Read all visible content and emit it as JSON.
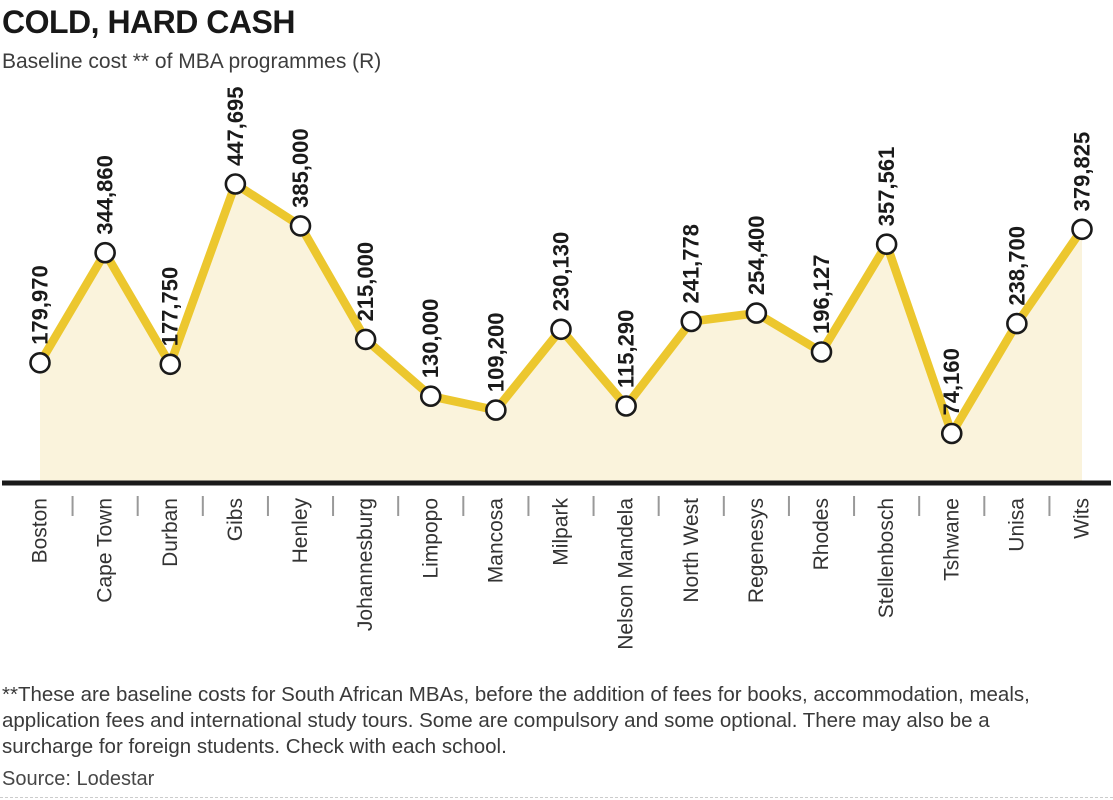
{
  "header": {
    "title": "COLD, HARD CASH",
    "subtitle": "Baseline cost ** of MBA programmes (R)"
  },
  "chart_data": {
    "type": "line",
    "title": "COLD, HARD CASH",
    "subtitle": "Baseline cost ** of MBA programmes (R)",
    "ylabel": "",
    "xlabel": "",
    "grid": false,
    "legend": false,
    "ylim": [
      0,
      470000
    ],
    "categories": [
      "Boston",
      "Cape Town",
      "Durban",
      "Gibs",
      "Henley",
      "Johannesburg",
      "Limpopo",
      "Mancosa",
      "Milpark",
      "Nelson Mandela",
      "North West",
      "Regenesys",
      "Rhodes",
      "Stellenbosch",
      "Tshwane",
      "Unisa",
      "Wits"
    ],
    "values": [
      179970,
      344860,
      177750,
      447695,
      385000,
      215000,
      130000,
      109200,
      230130,
      115290,
      241778,
      254400,
      196127,
      357561,
      74160,
      238700,
      379825
    ],
    "value_labels": [
      "179,970",
      "344,860",
      "177,750",
      "447,695",
      "385,000",
      "215,000",
      "130,000",
      "109,200",
      "230,130",
      "115,290",
      "241,778",
      "254,400",
      "196,127",
      "357,561",
      "74,160",
      "238,700",
      "379,825"
    ],
    "style": {
      "line_color": "#ECC72E",
      "area_fill_color": "#FAF3DC",
      "marker_fill": "#FFFFFF",
      "marker_stroke": "#1A1A1A",
      "axis_color": "#1A1A1A",
      "tick_color": "#999999",
      "value_label_color": "#1A1A1A",
      "category_label_color": "#333333"
    }
  },
  "footnote": {
    "lines": [
      "**These are baseline costs for South African MBAs, before the addition of fees for books, accommodation, meals,",
      "application fees and international study tours. Some are compulsory and some optional. There may also be a",
      "surcharge for foreign students. Check with each school."
    ]
  },
  "source": "Source: Lodestar"
}
